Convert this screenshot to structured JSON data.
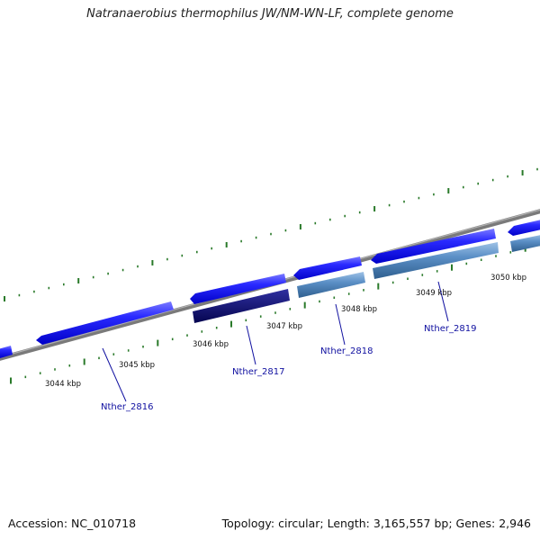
{
  "title": "Natranaerobius thermophilus JW/NM-WN-LF, complete genome",
  "footer": {
    "accession": "Accession: NC_010718",
    "summary": "Topology: circular; Length: 3,165,557 bp; Genes: 2,946"
  },
  "scale_labels": [
    "3044 kbp",
    "3045 kbp",
    "3046 kbp",
    "3047 kbp",
    "3048 kbp",
    "3049 kbp",
    "3050 kbp"
  ],
  "gene_labels": [
    "Nther_2816",
    "Nther_2817",
    "Nther_2818",
    "Nther_2819"
  ],
  "colors": {
    "backbone": "#8a8a8a",
    "gene_blue": "#1a1aee",
    "gene_navy": "#0a0a70",
    "gene_steel": "#4a82b8",
    "tick_green": "#2a7a2a",
    "label_blue": "#1010a0"
  }
}
